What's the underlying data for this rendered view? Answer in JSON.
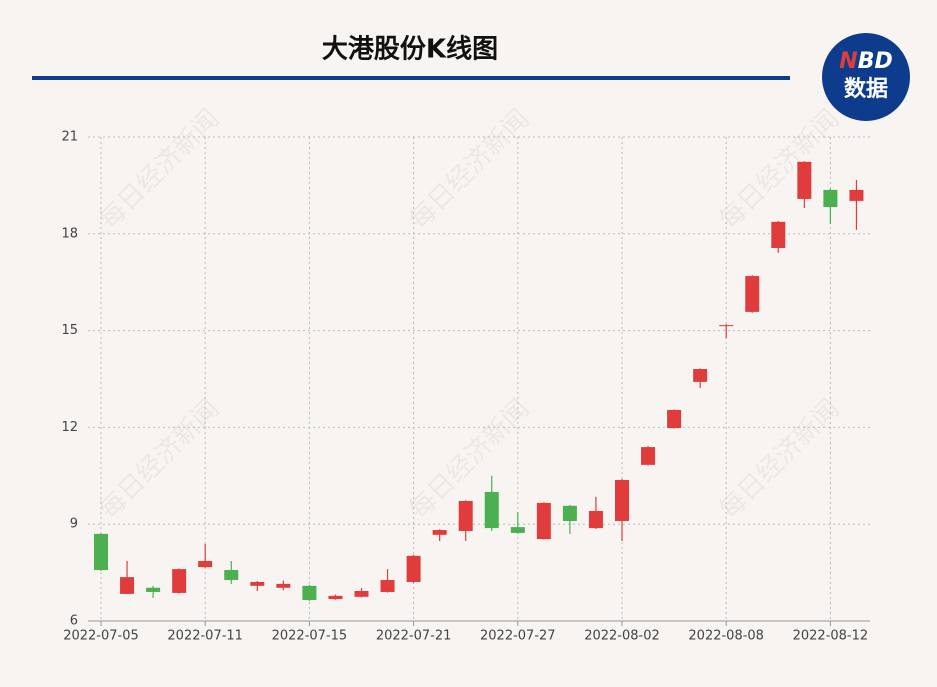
{
  "chart_data": {
    "type": "candlestick",
    "title": "大港股份K线图",
    "watermark": "每日经济新闻",
    "logo": {
      "mark": [
        "N",
        "BD"
      ],
      "label": "数据"
    },
    "categories": [
      "2022-07-05",
      null,
      null,
      null,
      "2022-07-11",
      null,
      null,
      null,
      "2022-07-15",
      null,
      null,
      null,
      "2022-07-21",
      null,
      null,
      null,
      "2022-07-27",
      null,
      null,
      null,
      "2022-08-02",
      null,
      null,
      null,
      "2022-08-08",
      null,
      null,
      null,
      "2022-08-12",
      null
    ],
    "open": [
      8.7,
      6.84,
      7.03,
      6.87,
      7.67,
      7.58,
      7.09,
      7.03,
      7.09,
      6.68,
      6.75,
      6.9,
      7.21,
      8.67,
      8.79,
      10.0,
      8.91,
      8.54,
      9.57,
      8.88,
      9.1,
      10.84,
      11.98,
      13.41,
      15.14,
      15.58,
      17.56,
      19.08,
      19.36,
      19.02
    ],
    "high": [
      8.72,
      7.86,
      7.09,
      7.63,
      8.39,
      7.86,
      7.24,
      7.25,
      7.12,
      6.82,
      7.02,
      7.61,
      8.05,
      8.84,
      9.74,
      10.5,
      9.38,
      9.68,
      9.6,
      9.85,
      10.4,
      11.42,
      12.56,
      13.83,
      15.2,
      16.72,
      18.4,
      20.25,
      19.4,
      19.67
    ],
    "low": [
      7.55,
      6.84,
      6.72,
      6.85,
      7.65,
      7.15,
      6.93,
      6.95,
      6.62,
      6.66,
      6.73,
      6.88,
      7.18,
      8.48,
      8.48,
      8.79,
      8.7,
      8.52,
      8.7,
      8.85,
      8.48,
      10.82,
      11.96,
      13.22,
      14.77,
      15.55,
      17.41,
      18.8,
      18.3,
      18.12
    ],
    "close": [
      7.58,
      7.36,
      6.9,
      7.61,
      7.86,
      7.27,
      7.21,
      7.15,
      6.65,
      6.78,
      6.93,
      7.27,
      8.02,
      8.82,
      9.72,
      8.88,
      8.73,
      9.66,
      9.1,
      9.41,
      10.37,
      11.39,
      12.54,
      13.81,
      15.17,
      16.69,
      18.37,
      20.23,
      18.83,
      19.36
    ],
    "up_color": "#e03c3c",
    "down_color": "#4caf50",
    "ylim": [
      6,
      21
    ],
    "yticks": [
      6,
      9,
      12,
      15,
      18,
      21
    ],
    "grid": true
  }
}
